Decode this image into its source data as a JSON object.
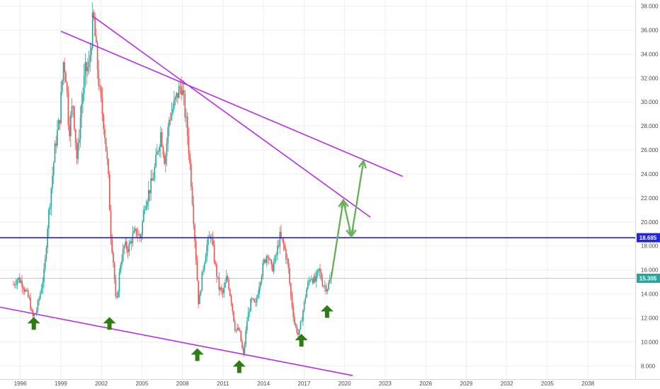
{
  "chart_data": {
    "type": "candlestick",
    "title": "",
    "x_range": [
      1994.5,
      2041.5
    ],
    "y_range": [
      6.9,
      38.5
    ],
    "x_ticks": [
      "1996",
      "1999",
      "2002",
      "2005",
      "2008",
      "2011",
      "2014",
      "2017",
      "2020",
      "2023",
      "2026",
      "2029",
      "2032",
      "2035",
      "2038"
    ],
    "y_ticks": [
      "8.000",
      "10.000",
      "12.000",
      "14.000",
      "16.000",
      "18.000",
      "20.000",
      "22.000",
      "24.000",
      "26.000",
      "28.000",
      "30.000",
      "32.000",
      "34.000",
      "36.000",
      "38.000"
    ],
    "price_series": [
      {
        "x": 1995.5,
        "y": 14.8
      },
      {
        "x": 1995.8,
        "y": 15.3
      },
      {
        "x": 1996.1,
        "y": 15.0
      },
      {
        "x": 1996.4,
        "y": 14.2
      },
      {
        "x": 1996.7,
        "y": 13.4
      },
      {
        "x": 1996.9,
        "y": 12.0
      },
      {
        "x": 1997.2,
        "y": 12.6
      },
      {
        "x": 1997.5,
        "y": 14.2
      },
      {
        "x": 1997.8,
        "y": 16.0
      },
      {
        "x": 1998.0,
        "y": 19.5
      },
      {
        "x": 1998.3,
        "y": 23.0
      },
      {
        "x": 1998.6,
        "y": 26.5
      },
      {
        "x": 1998.9,
        "y": 28.5
      },
      {
        "x": 1999.2,
        "y": 33.5
      },
      {
        "x": 1999.4,
        "y": 32.0
      },
      {
        "x": 1999.6,
        "y": 27.5
      },
      {
        "x": 1999.9,
        "y": 30.0
      },
      {
        "x": 2000.2,
        "y": 25.0
      },
      {
        "x": 2000.5,
        "y": 29.5
      },
      {
        "x": 2000.8,
        "y": 32.5
      },
      {
        "x": 2001.1,
        "y": 33.0
      },
      {
        "x": 2001.4,
        "y": 37.3
      },
      {
        "x": 2001.7,
        "y": 33.0
      },
      {
        "x": 2001.9,
        "y": 30.5
      },
      {
        "x": 2002.2,
        "y": 28.0
      },
      {
        "x": 2002.5,
        "y": 24.0
      },
      {
        "x": 2002.7,
        "y": 19.0
      },
      {
        "x": 2002.9,
        "y": 16.5
      },
      {
        "x": 2003.1,
        "y": 12.8
      },
      {
        "x": 2003.4,
        "y": 16.5
      },
      {
        "x": 2003.7,
        "y": 18.0
      },
      {
        "x": 2004.0,
        "y": 17.8
      },
      {
        "x": 2004.3,
        "y": 18.8
      },
      {
        "x": 2004.6,
        "y": 19.2
      },
      {
        "x": 2004.9,
        "y": 18.6
      },
      {
        "x": 2005.2,
        "y": 21.5
      },
      {
        "x": 2005.5,
        "y": 22.5
      },
      {
        "x": 2005.8,
        "y": 23.5
      },
      {
        "x": 2006.1,
        "y": 25.5
      },
      {
        "x": 2006.4,
        "y": 27.5
      },
      {
        "x": 2006.7,
        "y": 25.0
      },
      {
        "x": 2007.0,
        "y": 28.5
      },
      {
        "x": 2007.3,
        "y": 29.5
      },
      {
        "x": 2007.6,
        "y": 30.5
      },
      {
        "x": 2007.9,
        "y": 31.5
      },
      {
        "x": 2008.1,
        "y": 30.0
      },
      {
        "x": 2008.4,
        "y": 27.0
      },
      {
        "x": 2008.7,
        "y": 22.5
      },
      {
        "x": 2009.0,
        "y": 17.0
      },
      {
        "x": 2009.2,
        "y": 13.0
      },
      {
        "x": 2009.5,
        "y": 16.0
      },
      {
        "x": 2009.8,
        "y": 18.0
      },
      {
        "x": 2010.1,
        "y": 19.0
      },
      {
        "x": 2010.4,
        "y": 16.5
      },
      {
        "x": 2010.7,
        "y": 14.5
      },
      {
        "x": 2011.0,
        "y": 14.0
      },
      {
        "x": 2011.3,
        "y": 15.5
      },
      {
        "x": 2011.6,
        "y": 13.5
      },
      {
        "x": 2011.9,
        "y": 11.0
      },
      {
        "x": 2012.2,
        "y": 11.0
      },
      {
        "x": 2012.5,
        "y": 8.8
      },
      {
        "x": 2012.8,
        "y": 12.0
      },
      {
        "x": 2013.1,
        "y": 13.5
      },
      {
        "x": 2013.4,
        "y": 13.0
      },
      {
        "x": 2013.7,
        "y": 15.0
      },
      {
        "x": 2014.0,
        "y": 16.5
      },
      {
        "x": 2014.3,
        "y": 17.5
      },
      {
        "x": 2014.6,
        "y": 16.0
      },
      {
        "x": 2014.9,
        "y": 17.0
      },
      {
        "x": 2015.2,
        "y": 18.8
      },
      {
        "x": 2015.5,
        "y": 18.0
      },
      {
        "x": 2015.8,
        "y": 16.5
      },
      {
        "x": 2016.0,
        "y": 14.0
      },
      {
        "x": 2016.3,
        "y": 11.5
      },
      {
        "x": 2016.6,
        "y": 10.5
      },
      {
        "x": 2016.9,
        "y": 12.5
      },
      {
        "x": 2017.2,
        "y": 14.5
      },
      {
        "x": 2017.5,
        "y": 15.5
      },
      {
        "x": 2017.8,
        "y": 15.0
      },
      {
        "x": 2018.1,
        "y": 16.0
      },
      {
        "x": 2018.4,
        "y": 14.8
      },
      {
        "x": 2018.7,
        "y": 14.5
      },
      {
        "x": 2019.0,
        "y": 15.3
      }
    ],
    "current_price": "15.305",
    "horizontal_level": "18.685",
    "trend_lines": [
      {
        "x1": 1999.0,
        "y1": 35.9,
        "x2": 2024.3,
        "y2": 23.8
      },
      {
        "x1": 2001.3,
        "y1": 37.2,
        "x2": 2021.9,
        "y2": 20.4
      },
      {
        "x1": 1994.5,
        "y1": 12.9,
        "x2": 2020.6,
        "y2": 7.2
      }
    ],
    "projection_path": [
      {
        "x": 2019.0,
        "y": 15.3
      },
      {
        "x": 2019.9,
        "y": 21.8
      },
      {
        "x": 2020.5,
        "y": 18.8
      },
      {
        "x": 2021.4,
        "y": 25.1
      }
    ],
    "up_arrows": [
      {
        "x": 1997.0,
        "y": 11.6
      },
      {
        "x": 2002.6,
        "y": 11.6
      },
      {
        "x": 2009.1,
        "y": 9.0
      },
      {
        "x": 2012.2,
        "y": 8.0
      },
      {
        "x": 2016.8,
        "y": 10.2
      },
      {
        "x": 2018.7,
        "y": 12.6
      }
    ],
    "colors": {
      "up": "#26a69a",
      "down": "#ef5350",
      "trend": "#b82ee6",
      "level": "#2323e0",
      "price_line": "#26a69a",
      "projection": "#6bb05a",
      "arrow": "#2e7d14",
      "axis_text": "#4a4a4a",
      "grid": "#eeeeee"
    }
  }
}
